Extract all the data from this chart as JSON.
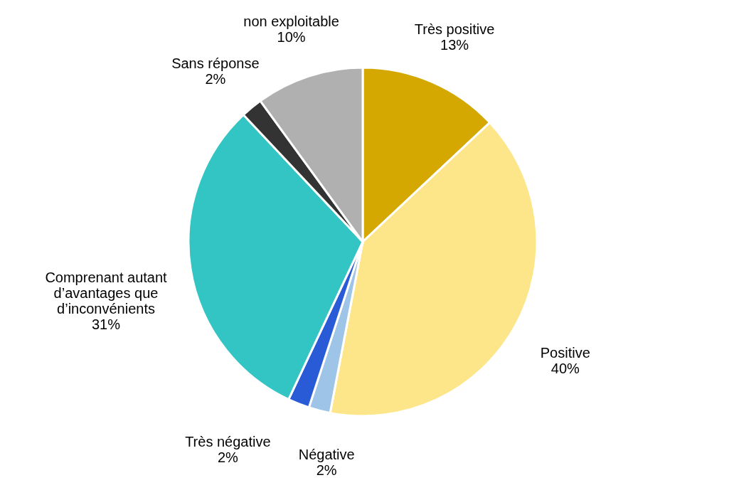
{
  "chart_data": {
    "type": "pie",
    "categories": [
      "Très positive",
      "Positive",
      "Négative",
      "Très négative",
      "Comprenant autant d’avantages que d’inconvénients",
      "Sans réponse",
      "non exploitable"
    ],
    "values": [
      13,
      40,
      2,
      2,
      31,
      2,
      10
    ],
    "value_labels": [
      "13%",
      "40%",
      "2%",
      "2%",
      "31%",
      "2%",
      "10%"
    ],
    "colors": [
      "#d4a800",
      "#fde68a",
      "#9ec5e8",
      "#2a5bd7",
      "#33c4c4",
      "#333333",
      "#b0b0b0"
    ],
    "legend": false
  }
}
